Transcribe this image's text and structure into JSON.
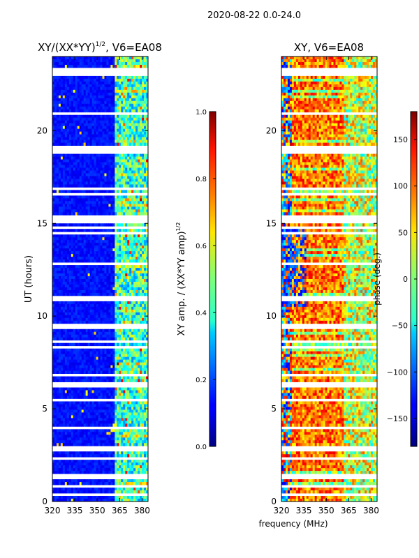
{
  "figure": {
    "suptitle": "2020-08-22 0.0-24.0",
    "xlabel_shared": "frequency (MHz)",
    "ylabel_shared": "UT (hours)"
  },
  "chart_data": [
    {
      "type": "heatmap",
      "title": "XY/(XX*YY)",
      "title_exponent": "1/2",
      "title_suffix": ", V6=EA08",
      "xlim": [
        320,
        384
      ],
      "ylim": [
        0,
        24
      ],
      "xticks": [
        320,
        335,
        350,
        365,
        380
      ],
      "yticks": [
        0,
        5,
        10,
        15,
        20
      ],
      "colorbar": {
        "label": "XY amp. / (XX*YY amp)",
        "label_exponent": "1/2",
        "range": [
          0.0,
          1.0
        ],
        "ticks": [
          "0.0",
          "0.2",
          "0.4",
          "0.6",
          "0.8",
          "1.0"
        ],
        "tick_values": [
          0.0,
          0.2,
          0.4,
          0.6,
          0.8,
          1.0
        ]
      }
    },
    {
      "type": "heatmap",
      "title": "XY, V6=EA08",
      "xlim": [
        320,
        384
      ],
      "ylim": [
        0,
        24
      ],
      "xticks": [
        320,
        335,
        350,
        365,
        380
      ],
      "yticks": [
        0,
        5,
        10,
        15,
        20
      ],
      "colorbar": {
        "label": "phase (deg.)",
        "range": [
          -180,
          180
        ],
        "ticks": [
          "150",
          "100",
          "50",
          "0",
          "−50",
          "−100",
          "−150"
        ],
        "tick_values": [
          150,
          100,
          50,
          0,
          -50,
          -100,
          -150
        ]
      }
    }
  ]
}
